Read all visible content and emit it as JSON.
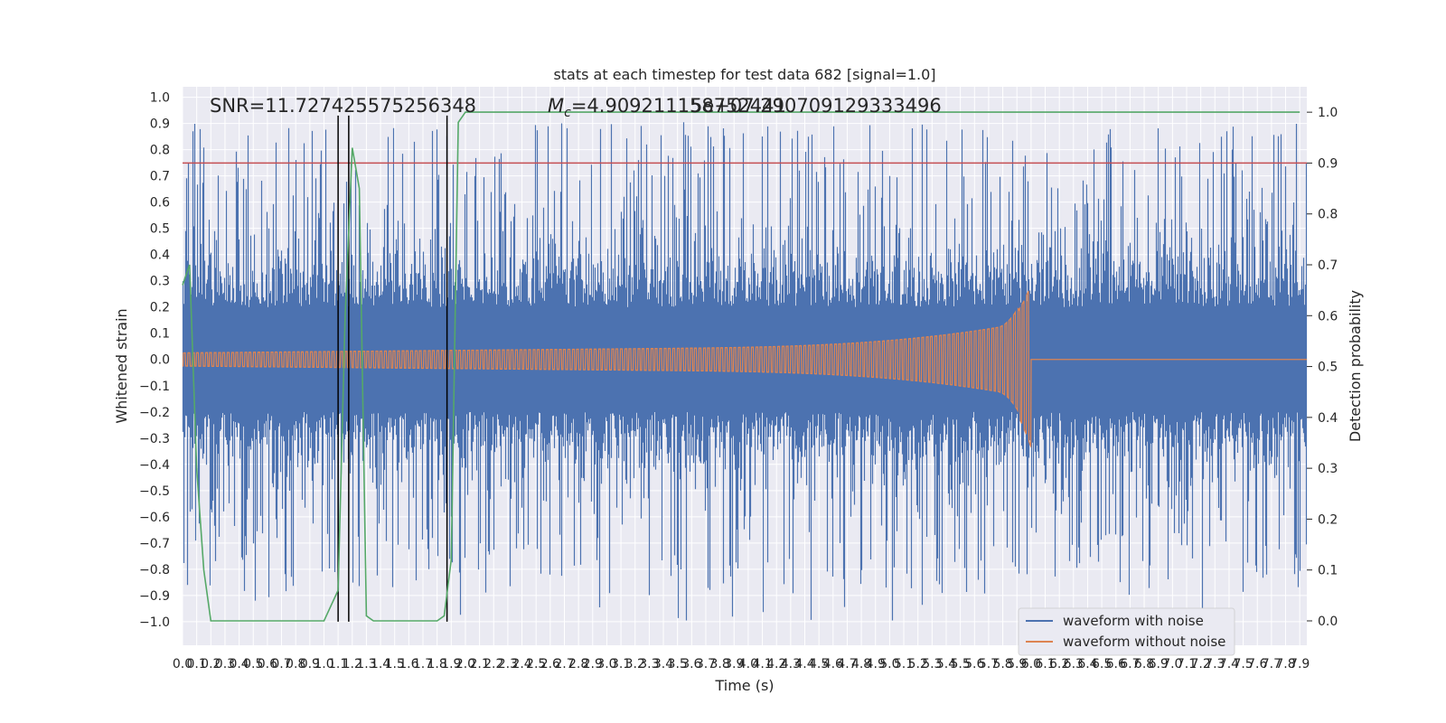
{
  "chart_data": {
    "type": "line",
    "title": "stats at each timestep for test data 682 [signal=1.0]",
    "xlabel": "Time (s)",
    "ylabel_left": "Whitened strain",
    "ylabel_right": "Detection probability",
    "annotations": {
      "snr": "SNR=11.727425575256348",
      "mc_prefix": "M",
      "mc_subscript": "c",
      "mc_value": "=4.909211158752441",
      "overlap": "5e+07.290709129333496"
    },
    "xlim": [
      0,
      7.95
    ],
    "ylim_left": [
      -1.09,
      1.04
    ],
    "ylim_right": [
      -0.048,
      1.05
    ],
    "x_ticks": [
      "0.0",
      "0.1",
      "0.2",
      "0.3",
      "0.4",
      "0.5",
      "0.6",
      "0.7",
      "0.8",
      "0.9",
      "1.0",
      "1.1",
      "1.2",
      "1.3",
      "1.4",
      "1.5",
      "1.6",
      "1.7",
      "1.8",
      "1.9",
      "2.0",
      "2.1",
      "2.2",
      "2.3",
      "2.4",
      "2.5",
      "2.6",
      "2.7",
      "2.8",
      "2.9",
      "3.0",
      "3.1",
      "3.2",
      "3.3",
      "3.4",
      "3.5",
      "3.6",
      "3.7",
      "3.8",
      "3.9",
      "4.0",
      "4.1",
      "4.2",
      "4.3",
      "4.4",
      "4.5",
      "4.6",
      "4.7",
      "4.8",
      "4.9",
      "5.0",
      "5.1",
      "5.2",
      "5.3",
      "5.4",
      "5.5",
      "5.6",
      "5.7",
      "5.8",
      "5.9",
      "6.0",
      "6.1",
      "6.2",
      "6.3",
      "6.4",
      "6.5",
      "6.6",
      "6.7",
      "6.8",
      "6.9",
      "7.0",
      "7.1",
      "7.2",
      "7.3",
      "7.4",
      "7.5",
      "7.6",
      "7.7",
      "7.8",
      "7.9"
    ],
    "y_ticks_left": [
      "1.0",
      "0.9",
      "0.8",
      "0.7",
      "0.6",
      "0.5",
      "0.4",
      "0.3",
      "0.2",
      "0.1",
      "0.0",
      "−0.1",
      "−0.2",
      "−0.3",
      "−0.4",
      "−0.5",
      "−0.6",
      "−0.7",
      "−0.8",
      "−0.9",
      "−1.0"
    ],
    "y_ticks_right": [
      "1.0",
      "0.9",
      "0.8",
      "0.7",
      "0.6",
      "0.5",
      "0.4",
      "0.3",
      "0.2",
      "0.1",
      "0.0"
    ],
    "series": [
      {
        "name": "waveform with noise",
        "color": "#4c72b0",
        "description": "dense noisy whitened strain, roughly within [-1.0, 0.91], typical envelope about ±0.35 with spikes to ±0.9"
      },
      {
        "name": "waveform without noise",
        "color": "#dd8452",
        "chirp": {
          "start": 0,
          "end": 6.0,
          "start_amp": 0.025,
          "peak_amp_pos": 0.28,
          "peak_amp_neg": -0.33,
          "after_value": 0.0
        }
      }
    ],
    "detection_probability": {
      "color": "#55a868",
      "x": [
        0.0,
        0.05,
        0.1,
        0.15,
        0.2,
        0.25,
        0.3,
        1.0,
        1.05,
        1.1,
        1.15,
        1.2,
        1.25,
        1.3,
        1.35,
        1.4,
        1.7,
        1.8,
        1.85,
        1.9,
        1.95,
        2.0,
        2.05,
        2.1,
        7.9
      ],
      "values": [
        0.66,
        0.7,
        0.3,
        0.1,
        0.0,
        0.0,
        0.0,
        0.0,
        0.03,
        0.06,
        0.6,
        0.93,
        0.85,
        0.01,
        0.0,
        0.0,
        0.0,
        0.0,
        0.01,
        0.12,
        0.98,
        1.0,
        1.0,
        1.0,
        1.0
      ]
    },
    "threshold": {
      "value": 0.9,
      "color": "#c44e52",
      "axis": "right"
    },
    "event_lines": [
      1.1,
      1.175,
      1.87
    ],
    "legend": {
      "placement": "lower-right",
      "items": [
        "waveform with noise",
        "waveform without noise"
      ]
    },
    "grid": true,
    "background": "#eaeaf2"
  }
}
